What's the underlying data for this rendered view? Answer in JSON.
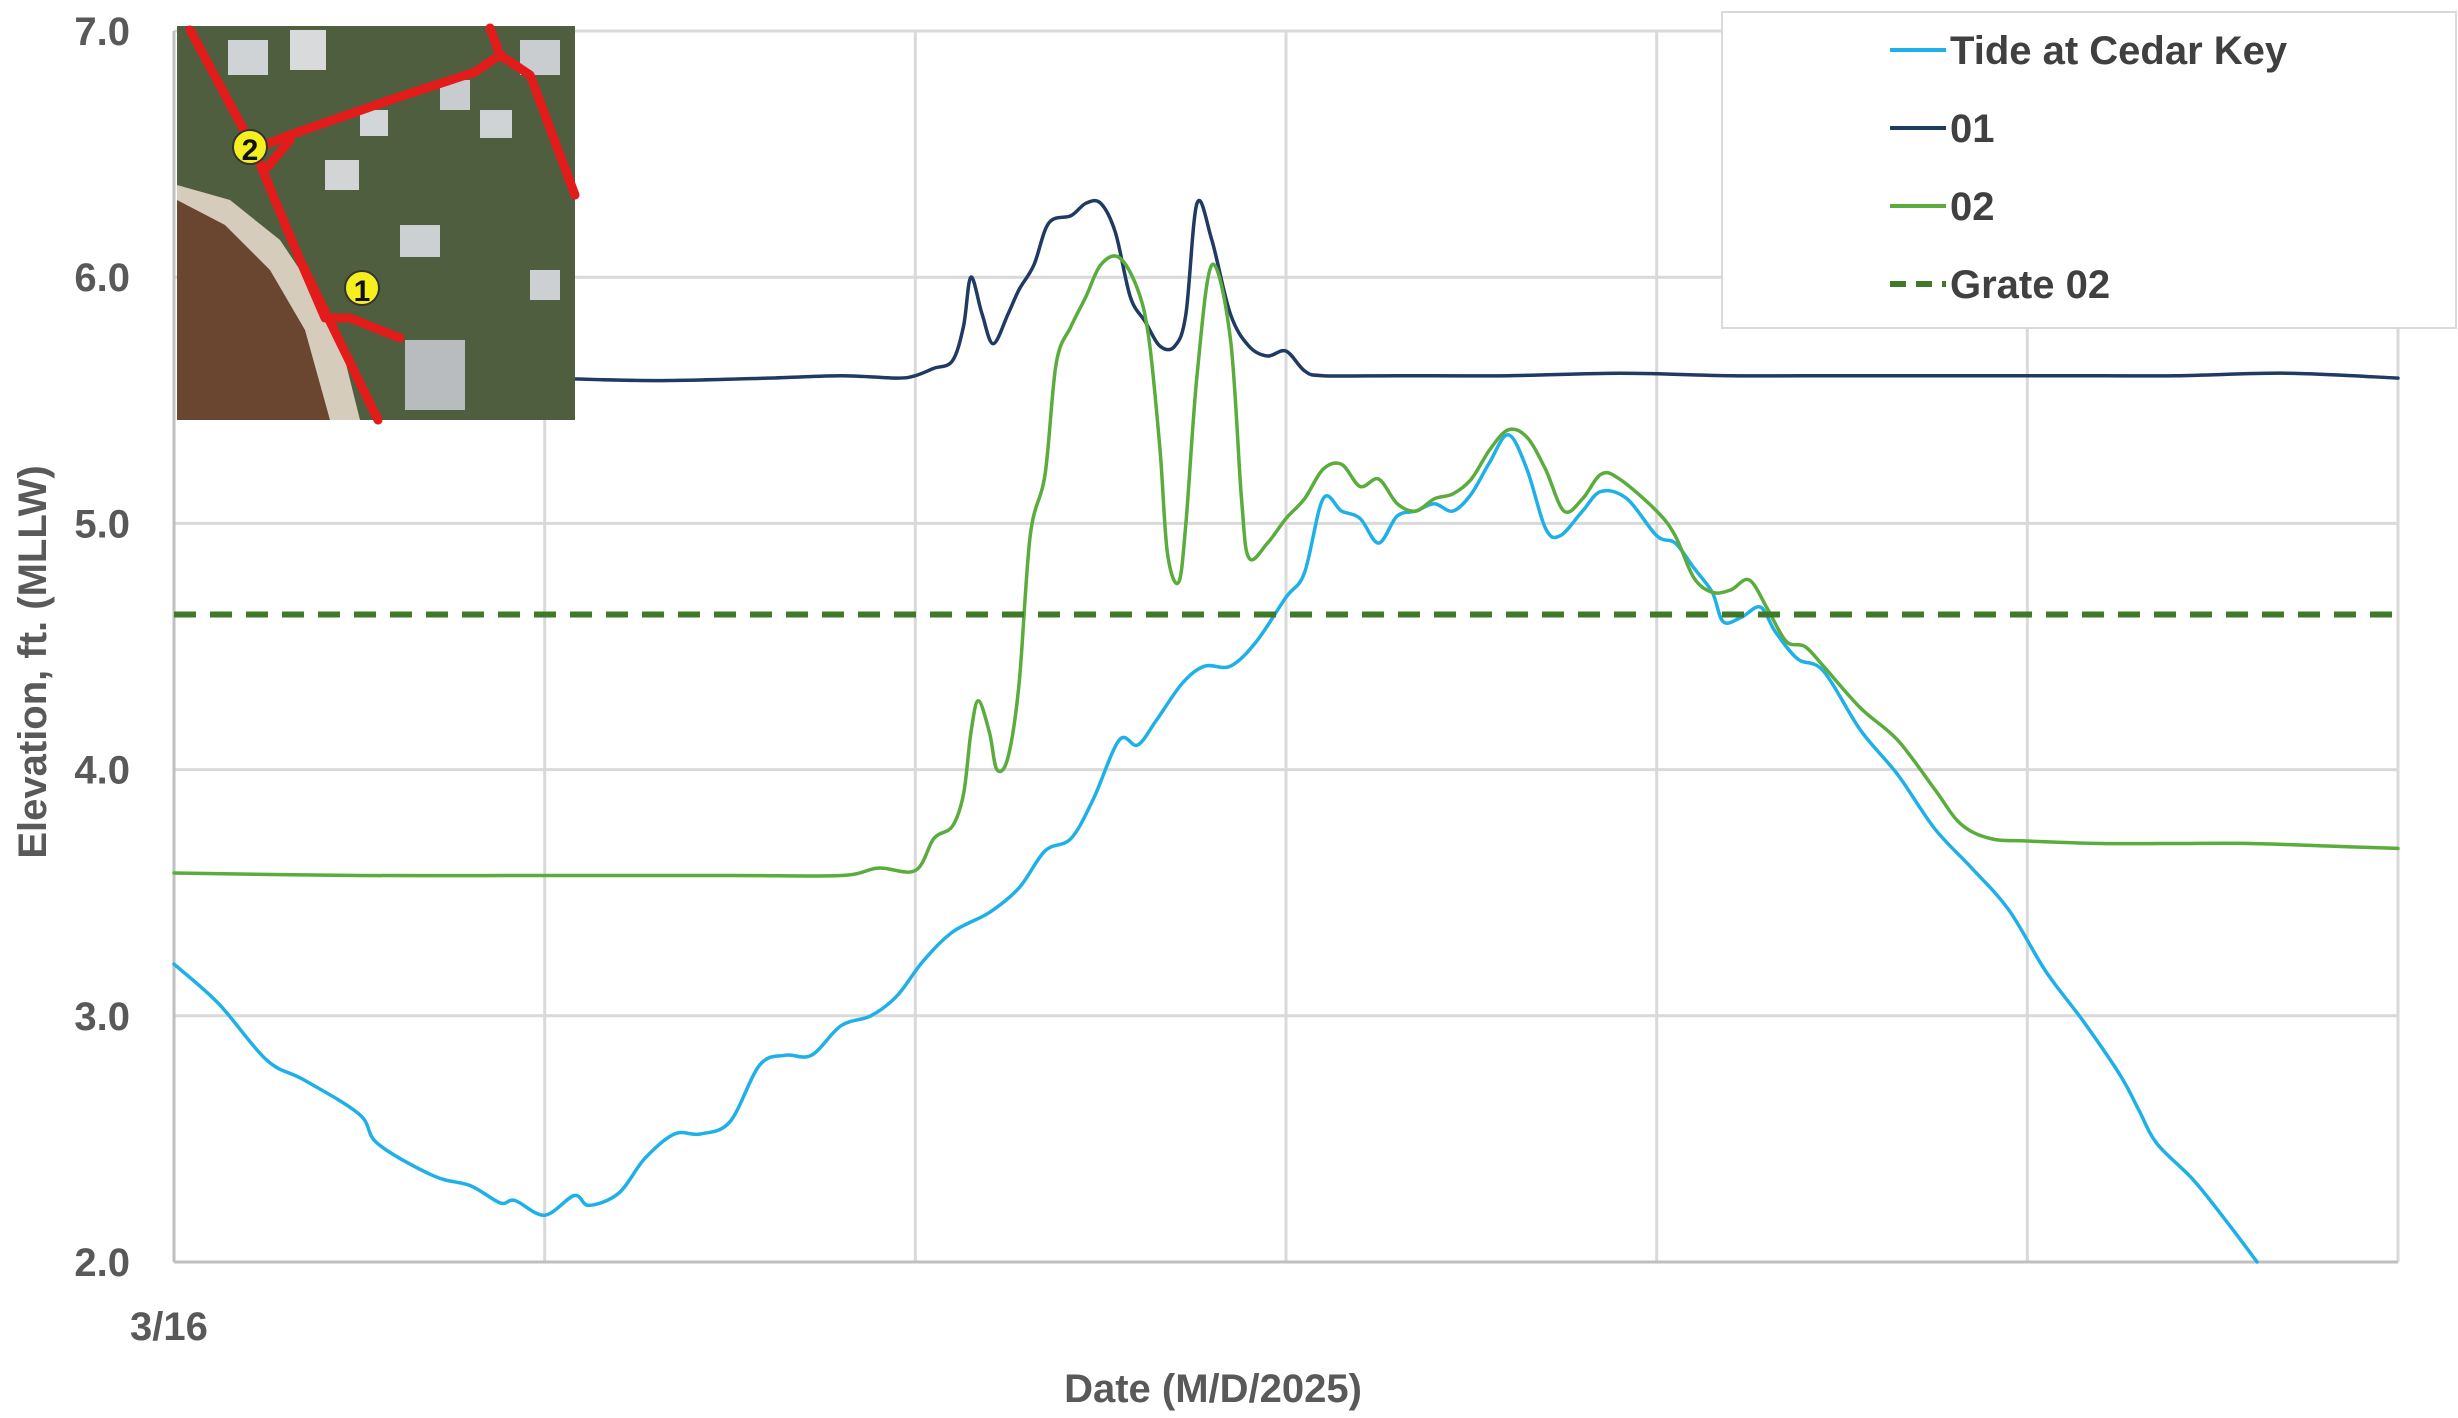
{
  "chart_data": {
    "type": "line",
    "title": "",
    "xlabel": "Date (M/D/2025)",
    "ylabel": "Elevation, ft. (MLLW)",
    "ylim": [
      2.0,
      7.0
    ],
    "yticks": [
      "2.0",
      "3.0",
      "4.0",
      "5.0",
      "6.0",
      "7.0"
    ],
    "xlim": [
      0,
      6
    ],
    "xtick_labels": [
      {
        "x": 0,
        "label": "3/16"
      }
    ],
    "grid": true,
    "legend_position": "top-right",
    "series": [
      {
        "name": "Tide at Cedar Key",
        "color": "#1fb0e8",
        "dash": "solid",
        "points": [
          [
            0.0,
            3.21
          ],
          [
            0.12,
            3.05
          ],
          [
            0.25,
            2.82
          ],
          [
            0.35,
            2.74
          ],
          [
            0.5,
            2.6
          ],
          [
            0.55,
            2.48
          ],
          [
            0.7,
            2.35
          ],
          [
            0.8,
            2.31
          ],
          [
            0.88,
            2.24
          ],
          [
            0.92,
            2.25
          ],
          [
            1.0,
            2.19
          ],
          [
            1.08,
            2.27
          ],
          [
            1.12,
            2.23
          ],
          [
            1.2,
            2.28
          ],
          [
            1.27,
            2.42
          ],
          [
            1.35,
            2.52
          ],
          [
            1.42,
            2.52
          ],
          [
            1.5,
            2.57
          ],
          [
            1.58,
            2.8
          ],
          [
            1.65,
            2.84
          ],
          [
            1.72,
            2.84
          ],
          [
            1.8,
            2.96
          ],
          [
            1.88,
            3.0
          ],
          [
            1.95,
            3.08
          ],
          [
            2.02,
            3.22
          ],
          [
            2.1,
            3.34
          ],
          [
            2.2,
            3.42
          ],
          [
            2.28,
            3.52
          ],
          [
            2.35,
            3.67
          ],
          [
            2.42,
            3.72
          ],
          [
            2.48,
            3.88
          ],
          [
            2.55,
            4.12
          ],
          [
            2.6,
            4.1
          ],
          [
            2.65,
            4.2
          ],
          [
            2.72,
            4.35
          ],
          [
            2.78,
            4.42
          ],
          [
            2.85,
            4.42
          ],
          [
            2.92,
            4.52
          ],
          [
            3.0,
            4.7
          ],
          [
            3.05,
            4.8
          ],
          [
            3.1,
            5.1
          ],
          [
            3.15,
            5.05
          ],
          [
            3.2,
            5.02
          ],
          [
            3.25,
            4.92
          ],
          [
            3.3,
            5.03
          ],
          [
            3.35,
            5.05
          ],
          [
            3.4,
            5.08
          ],
          [
            3.45,
            5.05
          ],
          [
            3.5,
            5.12
          ],
          [
            3.55,
            5.25
          ],
          [
            3.6,
            5.36
          ],
          [
            3.65,
            5.22
          ],
          [
            3.7,
            4.98
          ],
          [
            3.74,
            4.95
          ],
          [
            3.8,
            5.05
          ],
          [
            3.85,
            5.13
          ],
          [
            3.92,
            5.1
          ],
          [
            4.0,
            4.95
          ],
          [
            4.05,
            4.92
          ],
          [
            4.1,
            4.82
          ],
          [
            4.15,
            4.72
          ],
          [
            4.18,
            4.6
          ],
          [
            4.23,
            4.62
          ],
          [
            4.28,
            4.66
          ],
          [
            4.32,
            4.56
          ],
          [
            4.38,
            4.45
          ],
          [
            4.45,
            4.4
          ],
          [
            4.55,
            4.16
          ],
          [
            4.65,
            3.98
          ],
          [
            4.75,
            3.76
          ],
          [
            4.85,
            3.6
          ],
          [
            4.95,
            3.43
          ],
          [
            5.05,
            3.18
          ],
          [
            5.15,
            2.98
          ],
          [
            5.25,
            2.76
          ],
          [
            5.3,
            2.62
          ],
          [
            5.35,
            2.48
          ],
          [
            5.45,
            2.33
          ],
          [
            5.55,
            2.14
          ],
          [
            5.62,
            2.0
          ]
        ]
      },
      {
        "name": "01",
        "color": "#1f3b63",
        "dash": "solid",
        "points": [
          [
            1.0,
            5.59
          ],
          [
            1.3,
            5.58
          ],
          [
            1.6,
            5.59
          ],
          [
            1.8,
            5.6
          ],
          [
            1.95,
            5.59
          ],
          [
            2.0,
            5.6
          ],
          [
            2.05,
            5.63
          ],
          [
            2.1,
            5.66
          ],
          [
            2.13,
            5.8
          ],
          [
            2.15,
            6.0
          ],
          [
            2.18,
            5.85
          ],
          [
            2.21,
            5.73
          ],
          [
            2.25,
            5.85
          ],
          [
            2.28,
            5.95
          ],
          [
            2.32,
            6.05
          ],
          [
            2.36,
            6.22
          ],
          [
            2.42,
            6.25
          ],
          [
            2.46,
            6.3
          ],
          [
            2.5,
            6.3
          ],
          [
            2.54,
            6.18
          ],
          [
            2.58,
            5.92
          ],
          [
            2.62,
            5.82
          ],
          [
            2.66,
            5.72
          ],
          [
            2.7,
            5.72
          ],
          [
            2.73,
            5.85
          ],
          [
            2.76,
            6.3
          ],
          [
            2.8,
            6.15
          ],
          [
            2.85,
            5.85
          ],
          [
            2.9,
            5.72
          ],
          [
            2.95,
            5.68
          ],
          [
            3.0,
            5.7
          ],
          [
            3.05,
            5.62
          ],
          [
            3.1,
            5.6
          ],
          [
            3.3,
            5.6
          ],
          [
            3.6,
            5.6
          ],
          [
            3.9,
            5.61
          ],
          [
            4.2,
            5.6
          ],
          [
            4.5,
            5.6
          ],
          [
            4.8,
            5.6
          ],
          [
            5.1,
            5.6
          ],
          [
            5.4,
            5.6
          ],
          [
            5.7,
            5.61
          ],
          [
            6.0,
            5.59
          ]
        ]
      },
      {
        "name": "02",
        "color": "#5aac3c",
        "dash": "solid",
        "points": [
          [
            0.0,
            3.58
          ],
          [
            0.5,
            3.57
          ],
          [
            1.0,
            3.57
          ],
          [
            1.5,
            3.57
          ],
          [
            1.8,
            3.57
          ],
          [
            1.9,
            3.6
          ],
          [
            2.0,
            3.59
          ],
          [
            2.05,
            3.72
          ],
          [
            2.1,
            3.77
          ],
          [
            2.13,
            3.9
          ],
          [
            2.15,
            4.15
          ],
          [
            2.17,
            4.28
          ],
          [
            2.2,
            4.15
          ],
          [
            2.22,
            4.0
          ],
          [
            2.25,
            4.05
          ],
          [
            2.28,
            4.35
          ],
          [
            2.31,
            4.95
          ],
          [
            2.35,
            5.2
          ],
          [
            2.38,
            5.65
          ],
          [
            2.42,
            5.8
          ],
          [
            2.46,
            5.92
          ],
          [
            2.5,
            6.05
          ],
          [
            2.55,
            6.08
          ],
          [
            2.6,
            5.95
          ],
          [
            2.63,
            5.75
          ],
          [
            2.66,
            5.3
          ],
          [
            2.68,
            4.88
          ],
          [
            2.71,
            4.76
          ],
          [
            2.73,
            5.0
          ],
          [
            2.76,
            5.6
          ],
          [
            2.8,
            6.05
          ],
          [
            2.85,
            5.75
          ],
          [
            2.88,
            5.1
          ],
          [
            2.9,
            4.86
          ],
          [
            2.95,
            4.92
          ],
          [
            3.0,
            5.02
          ],
          [
            3.05,
            5.1
          ],
          [
            3.1,
            5.22
          ],
          [
            3.15,
            5.24
          ],
          [
            3.2,
            5.15
          ],
          [
            3.25,
            5.18
          ],
          [
            3.3,
            5.08
          ],
          [
            3.35,
            5.05
          ],
          [
            3.4,
            5.1
          ],
          [
            3.45,
            5.12
          ],
          [
            3.5,
            5.18
          ],
          [
            3.55,
            5.3
          ],
          [
            3.6,
            5.38
          ],
          [
            3.65,
            5.35
          ],
          [
            3.7,
            5.22
          ],
          [
            3.75,
            5.05
          ],
          [
            3.8,
            5.1
          ],
          [
            3.85,
            5.2
          ],
          [
            3.9,
            5.18
          ],
          [
            4.0,
            5.05
          ],
          [
            4.05,
            4.95
          ],
          [
            4.1,
            4.78
          ],
          [
            4.15,
            4.72
          ],
          [
            4.2,
            4.73
          ],
          [
            4.25,
            4.77
          ],
          [
            4.3,
            4.65
          ],
          [
            4.35,
            4.52
          ],
          [
            4.4,
            4.5
          ],
          [
            4.45,
            4.42
          ],
          [
            4.55,
            4.25
          ],
          [
            4.65,
            4.12
          ],
          [
            4.75,
            3.92
          ],
          [
            4.82,
            3.78
          ],
          [
            4.9,
            3.72
          ],
          [
            5.0,
            3.71
          ],
          [
            5.2,
            3.7
          ],
          [
            5.4,
            3.7
          ],
          [
            5.6,
            3.7
          ],
          [
            5.8,
            3.69
          ],
          [
            6.0,
            3.68
          ]
        ]
      },
      {
        "name": "Grate 02",
        "color": "#3f7a28",
        "dash": "dashed",
        "points": [
          [
            0.0,
            4.63
          ],
          [
            6.0,
            4.63
          ]
        ]
      }
    ]
  },
  "inset_map": {
    "markers": [
      "1",
      "2"
    ],
    "colors": {
      "route": "#e21b1b",
      "marker_fill": "#f5ef1f",
      "water": "#6b4a34",
      "beach": "#d9cfc0",
      "land": "#5b6b4a"
    }
  }
}
